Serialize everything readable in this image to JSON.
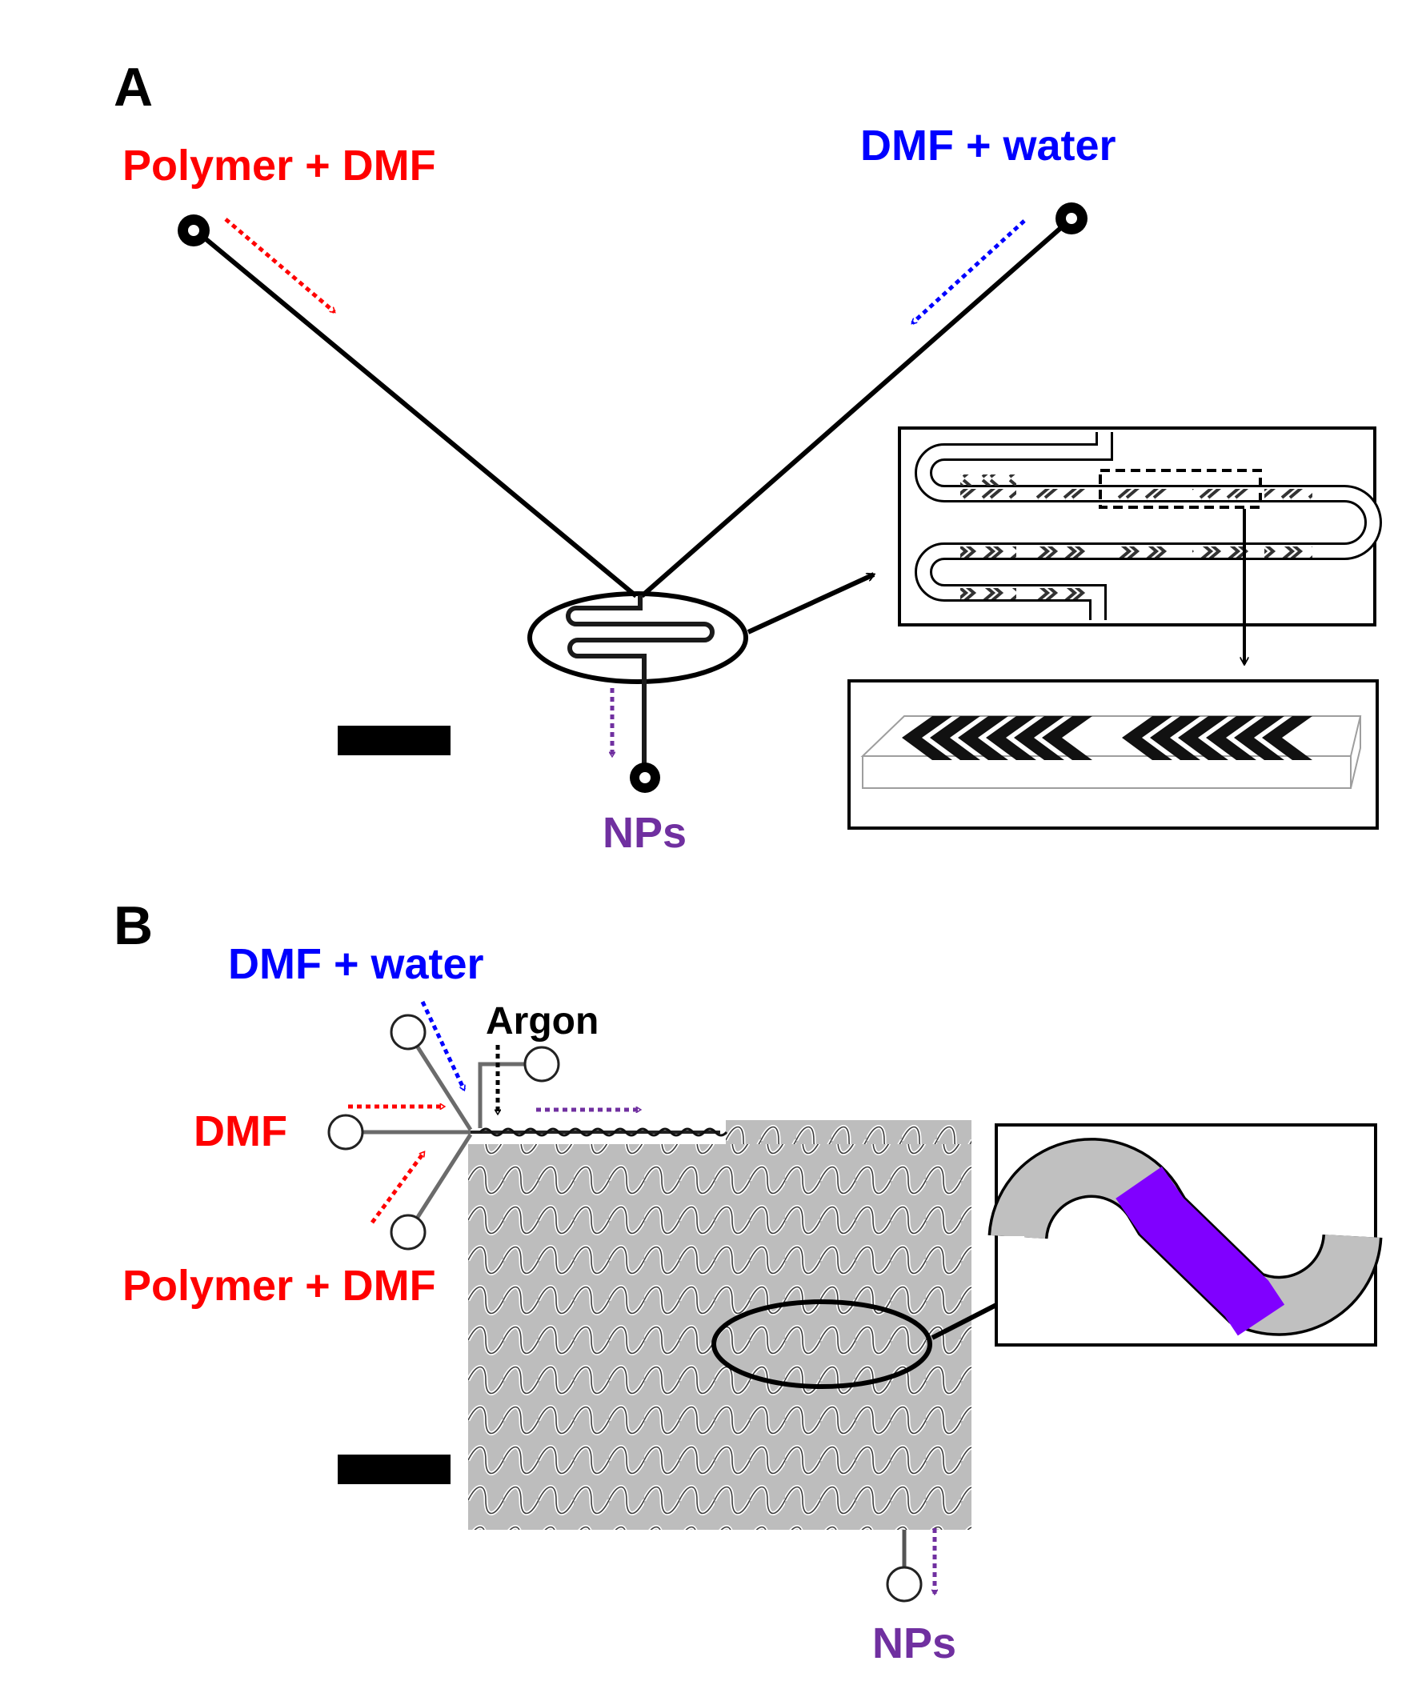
{
  "panel_a": {
    "label": "A",
    "inlet_left": "Polymer + DMF",
    "inlet_right": "DMF + water",
    "outlet": "NPs"
  },
  "panel_b": {
    "label": "B",
    "inlet_water": "DMF + water",
    "inlet_gas": "Argon",
    "inlet_dmf": "DMF",
    "inlet_polymer": "Polymer + DMF",
    "outlet": "NPs"
  },
  "colors": {
    "polymer_stream": "#ff0000",
    "water_stream": "#0000ff",
    "product_stream": "#7030a0",
    "segment_highlight": "#8000ff",
    "segment_gray": "#c0c0c0"
  }
}
